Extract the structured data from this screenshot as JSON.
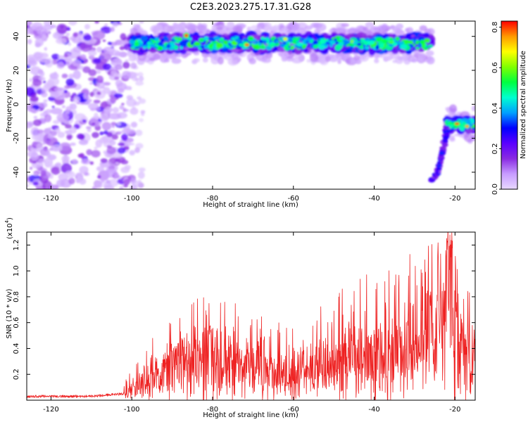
{
  "title": "C2E3.2023.275.17.31.G28",
  "chart_data": [
    {
      "type": "heatmap",
      "xlabel": "Height of straight line (km)",
      "ylabel": "Frequency (Hz)",
      "xlim": [
        -126,
        -15
      ],
      "ylim": [
        -50,
        49
      ],
      "x_ticks": [
        -120,
        -100,
        -80,
        -60,
        -40,
        -20
      ],
      "y_ticks": [
        -40,
        -20,
        0,
        20,
        40
      ],
      "colorbar": {
        "label": "Normalized spectral amplitude",
        "range": [
          0,
          0.83
        ],
        "ticks": [
          0.0,
          0.2,
          0.4,
          0.6,
          0.8
        ],
        "colormap": [
          "#e8d8ff",
          "#c79cff",
          "#8a2be2",
          "#5a00ff",
          "#0000ff",
          "#00a0ff",
          "#00ffd0",
          "#00ff40",
          "#80ff00",
          "#ffff00",
          "#ff9900",
          "#ff0000"
        ]
      },
      "features": [
        {
          "label": "noise",
          "x_range": [
            -126,
            -100
          ],
          "y_range": [
            -50,
            49
          ],
          "amplitude": 0.15
        },
        {
          "label": "band",
          "x_range": [
            -100,
            -26
          ],
          "y_center": 36,
          "y_halfwidth": 5,
          "amplitude": 0.45
        },
        {
          "label": "band",
          "x_range": [
            -22,
            -15
          ],
          "y_center": -12,
          "y_halfwidth": 4,
          "amplitude": 0.45
        },
        {
          "label": "drop",
          "x_range": [
            -26,
            -22
          ],
          "y_range": [
            -45,
            -13
          ],
          "amplitude": 0.3
        }
      ],
      "peaks": [
        {
          "x": -86.5,
          "y": 40.5,
          "value": 0.8
        },
        {
          "x": -71.5,
          "y": 35.0,
          "value": 0.78
        },
        {
          "x": -62.0,
          "y": 38.5,
          "value": 0.65
        },
        {
          "x": -19.5,
          "y": -11.5,
          "value": 0.8
        },
        {
          "x": -17.0,
          "y": -13.0,
          "value": 0.75
        },
        {
          "x": -45.5,
          "y": 37.0,
          "value": 0.6
        }
      ]
    },
    {
      "type": "line",
      "xlabel": "Height of straight line (km)",
      "ylabel": "SNR (10 * v/v)",
      "y_scale_label": "(x10",
      "y_scale_exp": "4",
      "xlim": [
        -126,
        -15
      ],
      "ylim": [
        0,
        1.3
      ],
      "x_ticks": [
        -120,
        -100,
        -80,
        -60,
        -40,
        -20
      ],
      "y_ticks": [
        0.2,
        0.4,
        0.6,
        0.8,
        1.0,
        1.2
      ],
      "line_color": "#ee2222",
      "series": [
        {
          "x": [
            -126,
            -120,
            -110,
            -102,
            -100,
            -98,
            -95,
            -92,
            -90,
            -88,
            -86,
            -84,
            -82,
            -80,
            -78,
            -76,
            -74,
            -72,
            -70,
            -68,
            -66,
            -64,
            -62,
            -60,
            -58,
            -56,
            -54,
            -52,
            -50,
            -48,
            -46,
            -44,
            -42,
            -40,
            -38,
            -36,
            -34,
            -32,
            -30,
            -28,
            -26,
            -24,
            -22,
            -21,
            -20,
            -18,
            -16,
            -15
          ],
          "y": [
            0.03,
            0.03,
            0.03,
            0.05,
            0.08,
            0.12,
            0.16,
            0.2,
            0.24,
            0.26,
            0.27,
            0.27,
            0.27,
            0.27,
            0.26,
            0.25,
            0.25,
            0.24,
            0.23,
            0.22,
            0.21,
            0.2,
            0.2,
            0.21,
            0.22,
            0.23,
            0.25,
            0.27,
            0.28,
            0.3,
            0.31,
            0.32,
            0.33,
            0.33,
            0.33,
            0.34,
            0.35,
            0.37,
            0.4,
            0.43,
            0.46,
            0.52,
            0.58,
            0.62,
            0.55,
            0.45,
            0.32,
            0.3
          ]
        }
      ],
      "envelope_peaks": [
        {
          "x": -80.5,
          "y": 0.58
        },
        {
          "x": -67.0,
          "y": 0.5
        },
        {
          "x": -26.0,
          "y": 0.85
        },
        {
          "x": -22.0,
          "y": 1.28
        },
        {
          "x": -21.0,
          "y": 1.3
        }
      ]
    }
  ]
}
